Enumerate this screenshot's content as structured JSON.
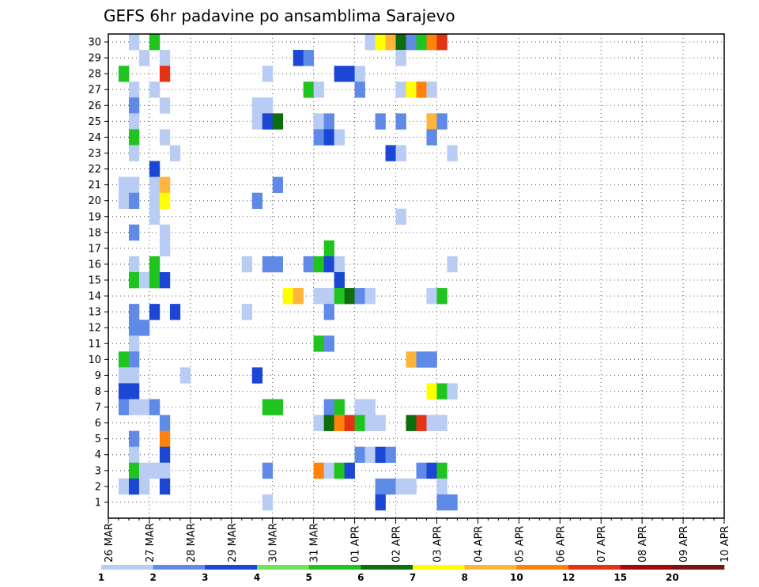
{
  "chart_data": {
    "type": "heatmap",
    "title": "GEFS 6hr padavine po ansamblima Sarajevo",
    "xlabel": "",
    "ylabel": "",
    "x_tick_labels": [
      "26 MAR",
      "27 MAR",
      "28 MAR",
      "29 MAR",
      "30 MAR",
      "31 MAR",
      "01 APR",
      "02 APR",
      "03 APR",
      "04 APR",
      "05 APR",
      "06 APR",
      "07 APR",
      "08 APR",
      "09 APR",
      "10 APR"
    ],
    "y_tick_labels": [
      "1",
      "2",
      "3",
      "4",
      "5",
      "6",
      "7",
      "8",
      "9",
      "10",
      "11",
      "12",
      "13",
      "14",
      "15",
      "16",
      "17",
      "18",
      "19",
      "20",
      "21",
      "22",
      "23",
      "24",
      "25",
      "26",
      "27",
      "28",
      "29",
      "30"
    ],
    "time_steps_per_day": 4,
    "members": 30,
    "grid": true,
    "colorbar": {
      "labels": [
        "1",
        "2",
        "3",
        "4",
        "5",
        "6",
        "7",
        "8",
        "10",
        "12",
        "15",
        "20"
      ],
      "colors": [
        "#b9ccf4",
        "#5f8ae8",
        "#1c46d6",
        "#6fe25c",
        "#1fc41f",
        "#0c6e0c",
        "#ffff00",
        "#ffb43c",
        "#ff820a",
        "#e43214",
        "#a50a0a",
        "#781414"
      ]
    },
    "cells": [
      [
        30,
        2,
        1
      ],
      [
        30,
        4,
        5
      ],
      [
        30,
        25,
        1
      ],
      [
        30,
        26,
        7
      ],
      [
        30,
        27,
        8
      ],
      [
        30,
        28,
        6
      ],
      [
        30,
        29,
        2
      ],
      [
        30,
        30,
        5
      ],
      [
        30,
        31,
        11
      ],
      [
        30,
        32,
        12
      ],
      [
        29,
        3,
        1
      ],
      [
        29,
        5,
        1
      ],
      [
        29,
        18,
        3
      ],
      [
        29,
        19,
        2
      ],
      [
        29,
        28,
        1
      ],
      [
        28,
        1,
        5
      ],
      [
        28,
        5,
        12
      ],
      [
        28,
        15,
        1
      ],
      [
        28,
        22,
        3
      ],
      [
        28,
        23,
        3
      ],
      [
        28,
        24,
        1
      ],
      [
        27,
        2,
        1
      ],
      [
        27,
        4,
        1
      ],
      [
        27,
        19,
        5
      ],
      [
        27,
        20,
        1
      ],
      [
        27,
        24,
        2
      ],
      [
        27,
        28,
        1
      ],
      [
        27,
        29,
        7
      ],
      [
        27,
        30,
        11
      ],
      [
        27,
        31,
        1
      ],
      [
        26,
        2,
        2
      ],
      [
        26,
        5,
        1
      ],
      [
        26,
        14,
        1
      ],
      [
        26,
        15,
        1
      ],
      [
        25,
        2,
        1
      ],
      [
        25,
        14,
        1
      ],
      [
        25,
        15,
        3
      ],
      [
        25,
        16,
        6
      ],
      [
        25,
        20,
        1
      ],
      [
        25,
        21,
        2
      ],
      [
        25,
        26,
        2
      ],
      [
        25,
        28,
        2
      ],
      [
        25,
        31,
        8
      ],
      [
        25,
        32,
        2
      ],
      [
        24,
        2,
        5
      ],
      [
        24,
        5,
        1
      ],
      [
        24,
        20,
        2
      ],
      [
        24,
        21,
        3
      ],
      [
        24,
        22,
        1
      ],
      [
        24,
        31,
        2
      ],
      [
        23,
        2,
        1
      ],
      [
        23,
        6,
        1
      ],
      [
        23,
        27,
        3
      ],
      [
        23,
        28,
        1
      ],
      [
        23,
        33,
        1
      ],
      [
        22,
        4,
        3
      ],
      [
        21,
        1,
        1
      ],
      [
        21,
        2,
        1
      ],
      [
        21,
        4,
        1
      ],
      [
        21,
        5,
        8
      ],
      [
        21,
        16,
        2
      ],
      [
        20,
        1,
        1
      ],
      [
        20,
        2,
        2
      ],
      [
        20,
        4,
        1
      ],
      [
        20,
        5,
        7
      ],
      [
        20,
        14,
        2
      ],
      [
        19,
        4,
        1
      ],
      [
        19,
        28,
        1
      ],
      [
        18,
        2,
        2
      ],
      [
        18,
        5,
        1
      ],
      [
        17,
        5,
        1
      ],
      [
        17,
        21,
        5
      ],
      [
        16,
        2,
        1
      ],
      [
        16,
        4,
        5
      ],
      [
        16,
        13,
        1
      ],
      [
        16,
        15,
        2
      ],
      [
        16,
        16,
        2
      ],
      [
        16,
        19,
        2
      ],
      [
        16,
        20,
        5
      ],
      [
        16,
        21,
        3
      ],
      [
        16,
        22,
        1
      ],
      [
        16,
        33,
        1
      ],
      [
        15,
        2,
        5
      ],
      [
        15,
        3,
        1
      ],
      [
        15,
        4,
        5
      ],
      [
        15,
        5,
        3
      ],
      [
        15,
        22,
        3
      ],
      [
        14,
        17,
        7
      ],
      [
        14,
        18,
        8
      ],
      [
        14,
        20,
        1
      ],
      [
        14,
        21,
        1
      ],
      [
        14,
        22,
        5
      ],
      [
        14,
        23,
        6
      ],
      [
        14,
        24,
        2
      ],
      [
        14,
        25,
        1
      ],
      [
        14,
        31,
        1
      ],
      [
        14,
        32,
        5
      ],
      [
        13,
        2,
        2
      ],
      [
        13,
        4,
        3
      ],
      [
        13,
        6,
        3
      ],
      [
        13,
        13,
        1
      ],
      [
        13,
        21,
        2
      ],
      [
        12,
        2,
        2
      ],
      [
        12,
        3,
        2
      ],
      [
        11,
        2,
        1
      ],
      [
        11,
        20,
        5
      ],
      [
        11,
        21,
        2
      ],
      [
        10,
        1,
        5
      ],
      [
        10,
        2,
        2
      ],
      [
        10,
        29,
        8
      ],
      [
        10,
        30,
        2
      ],
      [
        10,
        31,
        2
      ],
      [
        9,
        1,
        1
      ],
      [
        9,
        2,
        1
      ],
      [
        9,
        7,
        1
      ],
      [
        9,
        14,
        3
      ],
      [
        8,
        1,
        3
      ],
      [
        8,
        2,
        3
      ],
      [
        8,
        31,
        7
      ],
      [
        8,
        32,
        5
      ],
      [
        8,
        33,
        1
      ],
      [
        7,
        1,
        2
      ],
      [
        7,
        2,
        1
      ],
      [
        7,
        3,
        1
      ],
      [
        7,
        4,
        2
      ],
      [
        7,
        15,
        5
      ],
      [
        7,
        16,
        5
      ],
      [
        7,
        21,
        2
      ],
      [
        7,
        22,
        5
      ],
      [
        7,
        24,
        1
      ],
      [
        7,
        25,
        1
      ],
      [
        6,
        5,
        2
      ],
      [
        6,
        20,
        1
      ],
      [
        6,
        21,
        6
      ],
      [
        6,
        22,
        10
      ],
      [
        6,
        23,
        12
      ],
      [
        6,
        24,
        5
      ],
      [
        6,
        25,
        1
      ],
      [
        6,
        26,
        1
      ],
      [
        6,
        29,
        6
      ],
      [
        6,
        30,
        12
      ],
      [
        6,
        31,
        1
      ],
      [
        6,
        32,
        1
      ],
      [
        5,
        2,
        2
      ],
      [
        5,
        5,
        10
      ],
      [
        4,
        2,
        1
      ],
      [
        4,
        5,
        3
      ],
      [
        4,
        24,
        2
      ],
      [
        4,
        25,
        1
      ],
      [
        4,
        26,
        3
      ],
      [
        4,
        27,
        2
      ],
      [
        3,
        2,
        5
      ],
      [
        3,
        3,
        1
      ],
      [
        3,
        4,
        1
      ],
      [
        3,
        5,
        1
      ],
      [
        3,
        15,
        2
      ],
      [
        3,
        20,
        10
      ],
      [
        3,
        21,
        1
      ],
      [
        3,
        22,
        5
      ],
      [
        3,
        23,
        3
      ],
      [
        3,
        30,
        2
      ],
      [
        3,
        31,
        3
      ],
      [
        3,
        32,
        5
      ],
      [
        2,
        1,
        1
      ],
      [
        2,
        2,
        3
      ],
      [
        2,
        3,
        1
      ],
      [
        2,
        5,
        3
      ],
      [
        2,
        26,
        2
      ],
      [
        2,
        27,
        2
      ],
      [
        2,
        28,
        1
      ],
      [
        2,
        29,
        1
      ],
      [
        2,
        32,
        1
      ],
      [
        1,
        15,
        1
      ],
      [
        1,
        26,
        3
      ],
      [
        1,
        32,
        2
      ],
      [
        1,
        33,
        2
      ]
    ]
  }
}
